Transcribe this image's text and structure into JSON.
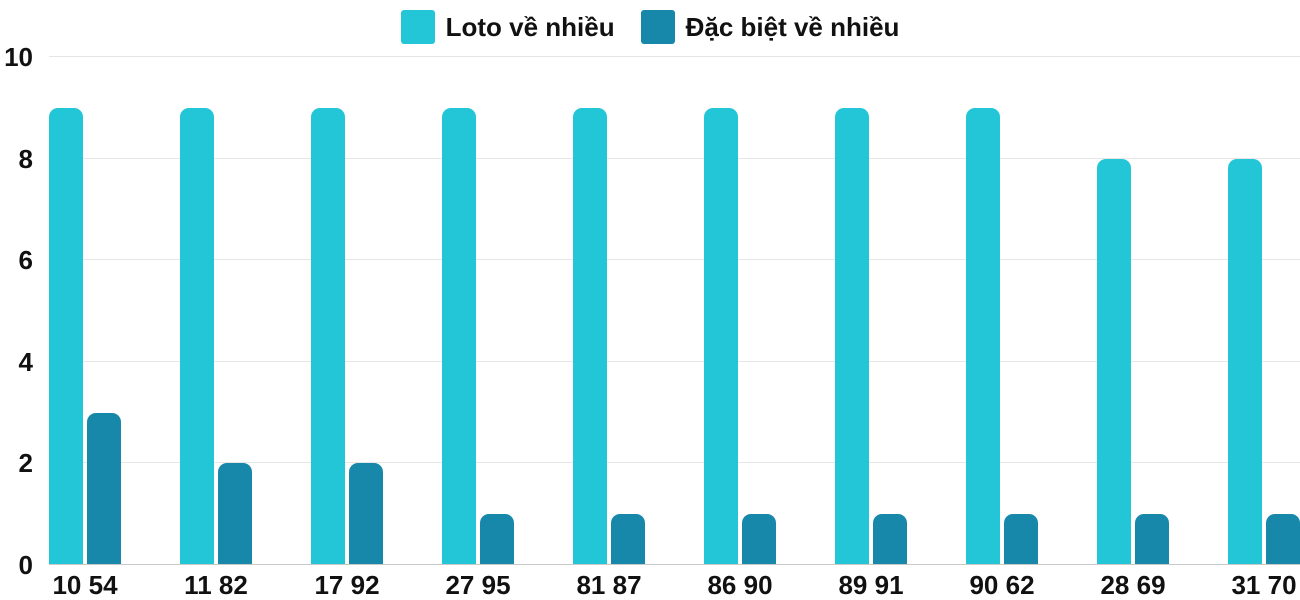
{
  "chart_data": {
    "type": "bar",
    "title": "",
    "xlabel": "",
    "ylabel": "",
    "categories": [
      "10 54",
      "11 82",
      "17 92",
      "27 95",
      "81 87",
      "86 90",
      "89 91",
      "90 62",
      "28 69",
      "31 70"
    ],
    "series": [
      {
        "name": "Loto về nhiều",
        "color": "#22c6d6",
        "values": [
          9,
          9,
          9,
          9,
          9,
          9,
          9,
          9,
          8,
          8
        ]
      },
      {
        "name": "Đặc biệt về nhiều",
        "color": "#1787aa",
        "values": [
          3,
          2,
          2,
          1,
          1,
          1,
          1,
          1,
          1,
          1
        ]
      }
    ],
    "ylim": [
      0,
      10
    ],
    "yticks": [
      0,
      2,
      4,
      6,
      8,
      10
    ],
    "grid": true,
    "legend_position": "top"
  },
  "colors": {
    "gridline": "#e6e6e6",
    "baseline": "#c9c9c9",
    "text": "#111111",
    "background": "#ffffff"
  }
}
